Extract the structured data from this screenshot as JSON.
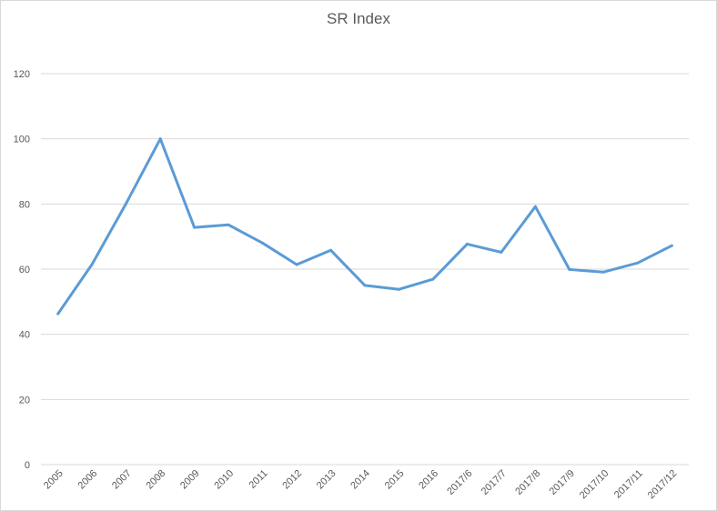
{
  "chart_data": {
    "type": "line",
    "title": "SR Index",
    "xlabel": "",
    "ylabel": "",
    "ylim": [
      0,
      120
    ],
    "yticks": [
      0,
      20,
      40,
      60,
      80,
      100,
      120
    ],
    "grid": true,
    "legend": "none",
    "categories": [
      "2005",
      "2006",
      "2007",
      "2008",
      "2009",
      "2010",
      "2011",
      "2012",
      "2013",
      "2014",
      "2015",
      "2016",
      "2017/6",
      "2017/7",
      "2017/8",
      "2017/9",
      "2017/10",
      "2017/11",
      "2017/12"
    ],
    "series": [
      {
        "color": "#5b9bd5",
        "values": [
          46.3,
          61.5,
          80.2,
          100,
          72.8,
          73.6,
          68.0,
          61.4,
          65.8,
          55.0,
          53.8,
          56.9,
          67.7,
          65.2,
          79.2,
          59.9,
          59.1,
          61.9,
          67.2
        ]
      }
    ]
  }
}
